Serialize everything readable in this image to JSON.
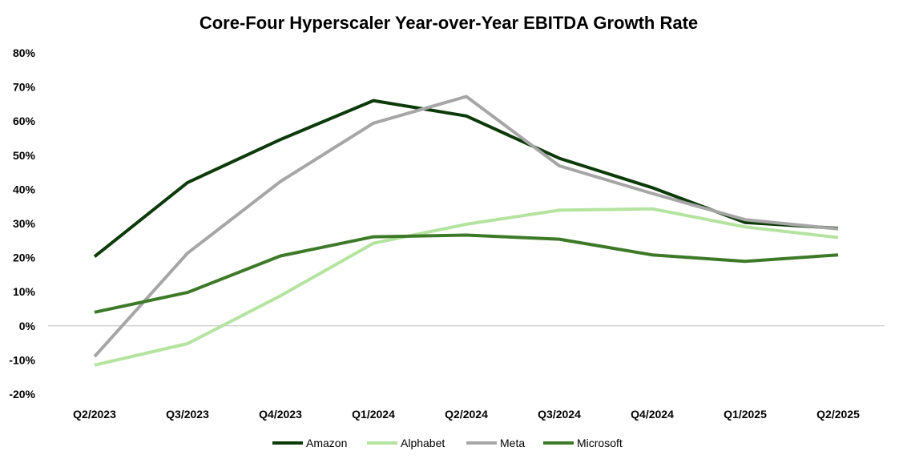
{
  "chart_data": {
    "type": "line",
    "title": "Core-Four Hyperscaler Year-over-Year EBITDA Growth Rate",
    "xlabel": "",
    "ylabel": "",
    "categories": [
      "Q2/2023",
      "Q3/2023",
      "Q4/2023",
      "Q1/2024",
      "Q2/2024",
      "Q3/2024",
      "Q4/2024",
      "Q1/2025",
      "Q2/2025"
    ],
    "ylim": [
      -20,
      80
    ],
    "yticks": [
      {
        "value": 80,
        "label": "80%"
      },
      {
        "value": 70,
        "label": "70%"
      },
      {
        "value": 60,
        "label": "60%"
      },
      {
        "value": 50,
        "label": "50%"
      },
      {
        "value": 40,
        "label": "40%"
      },
      {
        "value": 30,
        "label": "30%"
      },
      {
        "value": 20,
        "label": "20%"
      },
      {
        "value": 10,
        "label": "10%"
      },
      {
        "value": 0,
        "label": "0%"
      },
      {
        "value": -10,
        "label": "-10%"
      },
      {
        "value": -20,
        "label": "-20%"
      }
    ],
    "grid": false,
    "legend_position": "bottom",
    "series": [
      {
        "name": "Amazon",
        "color": "#0d3a0a",
        "values": [
          20.3,
          42.0,
          54.6,
          66.0,
          61.5,
          49.1,
          40.5,
          30.3,
          28.6
        ]
      },
      {
        "name": "Alphabet",
        "color": "#b5e3a0",
        "values": [
          -11.5,
          -5.2,
          8.8,
          24.2,
          29.8,
          33.9,
          34.3,
          29.0,
          25.9
        ]
      },
      {
        "name": "Meta",
        "color": "#a6a6a6",
        "values": [
          -9.0,
          21.3,
          42.3,
          59.4,
          67.2,
          46.9,
          38.8,
          31.1,
          28.4
        ]
      },
      {
        "name": "Microsoft",
        "color": "#3d7a28",
        "values": [
          4.0,
          9.8,
          20.5,
          26.1,
          26.6,
          25.4,
          20.8,
          18.9,
          20.8
        ]
      }
    ]
  }
}
